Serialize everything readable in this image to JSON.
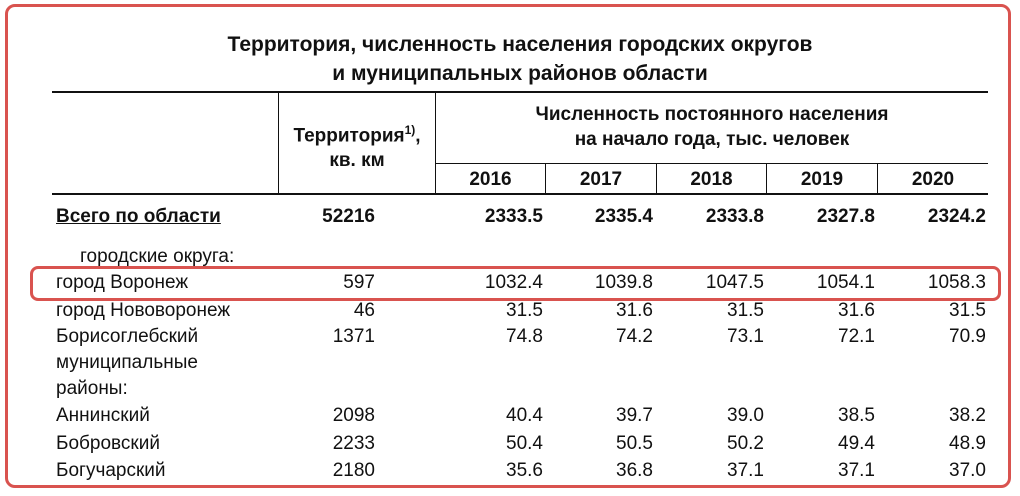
{
  "title": {
    "line1": "Территория, численность населения городских округов",
    "line2": "и муниципальных районов области"
  },
  "header": {
    "territory_line1": "Территория",
    "territory_sup": "1)",
    "territory_comma": ",",
    "territory_line2": "кв. км",
    "population_line1": "Численность постоянного населения",
    "population_line2": "на начало года, тыс. человек",
    "years": [
      "2016",
      "2017",
      "2018",
      "2019",
      "2020"
    ]
  },
  "rows": {
    "total": {
      "name": "Всего по области",
      "territory": "52216",
      "values": [
        "2333.5",
        "2335.4",
        "2333.8",
        "2327.8",
        "2324.2"
      ]
    },
    "section_urban": "городские округа:",
    "voronezh": {
      "name": "город Воронеж",
      "territory": "597",
      "values": [
        "1032.4",
        "1039.8",
        "1047.5",
        "1054.1",
        "1058.3"
      ]
    },
    "novovoronezh": {
      "name": "город Нововоронеж",
      "territory": "46",
      "values": [
        "31.5",
        "31.6",
        "31.5",
        "31.6",
        "31.5"
      ]
    },
    "borisoglebsk": {
      "name": "Борисоглебский",
      "territory": "1371",
      "values": [
        "74.8",
        "74.2",
        "73.1",
        "72.1",
        "70.9"
      ]
    },
    "section_districts_line1": "муниципальные",
    "section_districts_line2": "районы:",
    "anninsky": {
      "name": "Аннинский",
      "territory": "2098",
      "values": [
        "40.4",
        "39.7",
        "39.0",
        "38.5",
        "38.2"
      ]
    },
    "bobrovsky": {
      "name": "Бобровский",
      "territory": "2233",
      "values": [
        "50.4",
        "50.5",
        "50.2",
        "49.4",
        "48.9"
      ]
    },
    "boguchar": {
      "name": "Богучарский",
      "territory": "2180",
      "values": [
        "35.6",
        "36.8",
        "37.1",
        "37.1",
        "37.0"
      ]
    }
  },
  "highlight_color": "#d9534f"
}
